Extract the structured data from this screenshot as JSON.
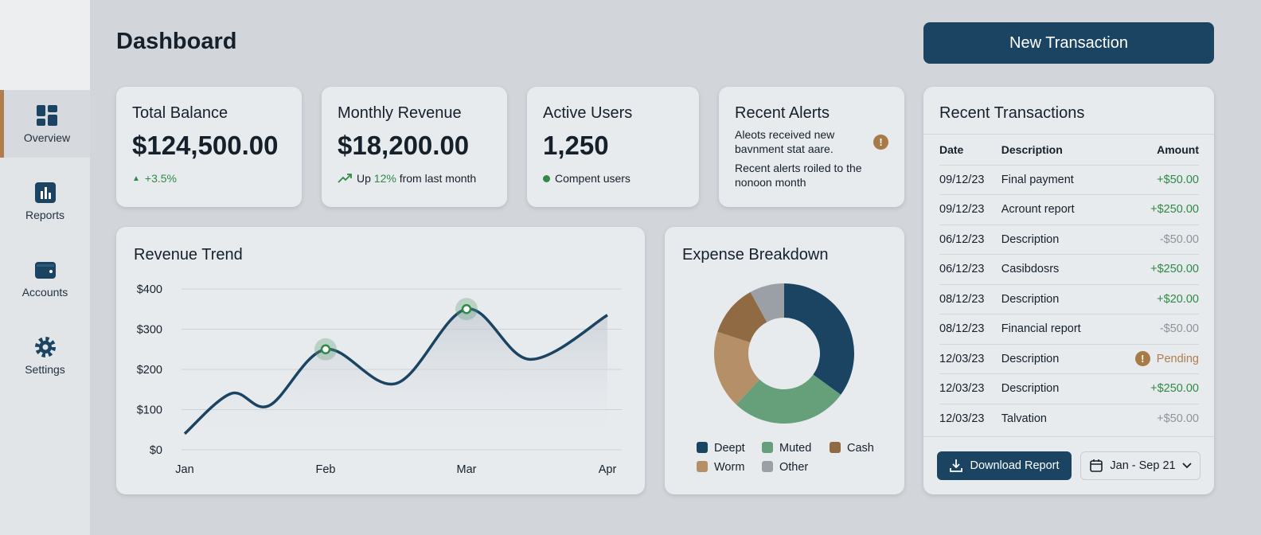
{
  "sidebar": {
    "items": [
      {
        "label": "Overview",
        "icon": "dashboard-icon",
        "active": true
      },
      {
        "label": "Reports",
        "icon": "bar-chart-icon"
      },
      {
        "label": "Accounts",
        "icon": "wallet-icon"
      },
      {
        "label": "Settings",
        "icon": "gear-icon"
      }
    ]
  },
  "header": {
    "title": "Dashboard",
    "new_transaction": "New Transaction"
  },
  "stats": {
    "balance": {
      "title": "Total Balance",
      "value": "$124,500.00",
      "change": "+3.5%"
    },
    "revenue": {
      "title": "Monthly Revenue",
      "value": "$18,200.00",
      "sub_pre": "Up ",
      "sub_pct": "12%",
      "sub_post": " from last month"
    },
    "users": {
      "title": "Active Users",
      "value": "1,250",
      "sub": "Compent users"
    },
    "alerts": {
      "title": "Recent Alerts",
      "line1": "Aleots received new bavnment stat aare.",
      "line2": "Recent alerts roiled to the nonoon month"
    }
  },
  "colors": {
    "navy": "#1b4463",
    "green": "#2e8a45",
    "brown": "#8f6a42",
    "tan": "#b48f67",
    "muted": "#65a07a",
    "gray": "#9aa0a6"
  },
  "chart_data": [
    {
      "type": "line",
      "title": "Revenue Trend",
      "x_labels": [
        "Jan",
        "Feb",
        "Mar",
        "Apr"
      ],
      "y_ticks": [
        "$0",
        "$100",
        "$200",
        "$300",
        "$400"
      ],
      "ylim": [
        0,
        400
      ],
      "grid": true,
      "points": [
        [
          0,
          40
        ],
        [
          0.33,
          140
        ],
        [
          0.6,
          110
        ],
        [
          1,
          250
        ],
        [
          1.5,
          165
        ],
        [
          2,
          350
        ],
        [
          2.45,
          225
        ],
        [
          3,
          335
        ]
      ],
      "highlighted": [
        [
          1,
          250
        ],
        [
          2,
          350
        ]
      ]
    },
    {
      "type": "pie",
      "title": "Expense Breakdown",
      "donut": true,
      "labels": [
        "Deept",
        "Muted",
        "Worm",
        "Cash",
        "Other"
      ],
      "values": [
        35,
        27,
        18,
        12,
        8
      ],
      "colors": [
        "#1b4463",
        "#65a07a",
        "#b48f67",
        "#8f6a42",
        "#9aa0a6"
      ],
      "legend_order": [
        "Deept",
        "Muted",
        "Cash",
        "Worm",
        "Other"
      ]
    }
  ],
  "transactions": {
    "title": "Recent Transactions",
    "headers": [
      "Date",
      "Description",
      "Amount"
    ],
    "rows": [
      {
        "date": "09/12/23",
        "desc": "Final payment",
        "amount": "+$50.00",
        "kind": "pos"
      },
      {
        "date": "09/12/23",
        "desc": "Acrount report",
        "amount": "+$250.00",
        "kind": "pos"
      },
      {
        "date": "06/12/23",
        "desc": "Description",
        "amount": "-$50.00",
        "kind": "neg"
      },
      {
        "date": "06/12/23",
        "desc": "Casibdosrs",
        "amount": "+$250.00",
        "kind": "pos"
      },
      {
        "date": "08/12/23",
        "desc": "Description",
        "amount": "+$20.00",
        "kind": "pos"
      },
      {
        "date": "08/12/23",
        "desc": "Financial report",
        "amount": "-$50.00",
        "kind": "neg"
      },
      {
        "date": "12/03/23",
        "desc": "Description",
        "amount": "Pending",
        "kind": "pend"
      },
      {
        "date": "12/03/23",
        "desc": "Description",
        "amount": "+$250.00",
        "kind": "pos"
      },
      {
        "date": "12/03/23",
        "desc": "Talvation",
        "amount": "+$50.00",
        "kind": "neg"
      }
    ],
    "download": "Download Report",
    "range": "Jan - Sep 21"
  }
}
